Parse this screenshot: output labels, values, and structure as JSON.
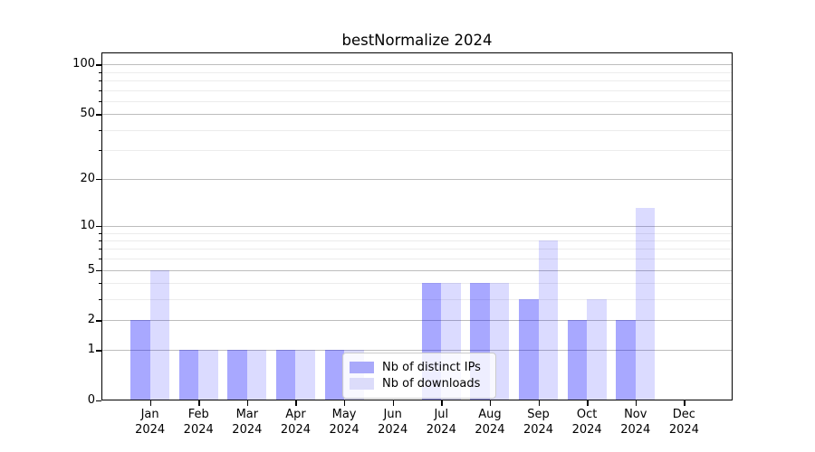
{
  "chart_data": {
    "type": "bar",
    "title": "bestNormalize 2024",
    "categories": [
      "Jan",
      "Feb",
      "Mar",
      "Apr",
      "May",
      "Jun",
      "Jul",
      "Aug",
      "Sep",
      "Oct",
      "Nov",
      "Dec"
    ],
    "category_year": "2024",
    "series": [
      {
        "name": "Nb of distinct IPs",
        "color": "rgba(0,0,255,0.34)",
        "legend_color": "#a9a9fa",
        "values": [
          2,
          1,
          1,
          1,
          1,
          0,
          4,
          4,
          3,
          2,
          2,
          0
        ]
      },
      {
        "name": "Nb of downloads",
        "color": "rgba(0,0,255,0.14)",
        "legend_color": "#dcdcfa",
        "values": [
          5,
          1,
          1,
          1,
          1,
          0,
          4,
          4,
          8,
          3,
          13,
          0
        ]
      }
    ],
    "xlabel": "",
    "ylabel": "",
    "yscale": "log1p",
    "ylim": [
      0,
      118
    ],
    "yticks": [
      0,
      1,
      2,
      5,
      10,
      20,
      50,
      100
    ],
    "yticks_minor": [
      3,
      4,
      6,
      7,
      8,
      9,
      30,
      40,
      60,
      70,
      80,
      90
    ],
    "grid": {
      "major_color": "#bdbdbd",
      "minor_color": "#ececec",
      "on": true
    },
    "legend_position": "lower center",
    "bar_width_fraction": 0.4
  }
}
